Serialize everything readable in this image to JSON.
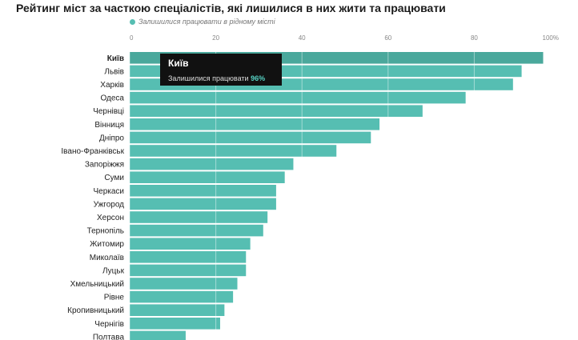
{
  "chart_data": {
    "type": "bar",
    "orientation": "horizontal",
    "title": "Рейтинг міст за часткою спеціалістів, які лишилися в них жити та працювати",
    "legend": [
      {
        "name": "Залишилися працювати в рідному місті",
        "color": "#56beb2"
      }
    ],
    "categories": [
      "Київ",
      "Львів",
      "Харків",
      "Одеса",
      "Чернівці",
      "Вінниця",
      "Дніпро",
      "Івано-Франківськ",
      "Запоріжжя",
      "Суми",
      "Черкаси",
      "Ужгород",
      "Херсон",
      "Тернопіль",
      "Житомир",
      "Миколаїв",
      "Луцьк",
      "Хмельницький",
      "Рівне",
      "Кропивницький",
      "Чернігів",
      "Полтава"
    ],
    "values": [
      96,
      91,
      89,
      78,
      68,
      58,
      56,
      48,
      38,
      36,
      34,
      34,
      32,
      31,
      28,
      27,
      27,
      25,
      24,
      22,
      21,
      13
    ],
    "xlim": [
      0,
      100
    ],
    "xticks": [
      "0",
      "20",
      "40",
      "60",
      "80",
      "100%"
    ],
    "xtick_values": [
      0,
      20,
      40,
      60,
      80,
      100
    ],
    "highlight": "Київ",
    "bar_color": "#56beb2",
    "highlight_color": "#4aa89c",
    "grid": true,
    "tooltip": {
      "city": "Київ",
      "label": "Залишилися працювати",
      "value": "96%"
    }
  }
}
